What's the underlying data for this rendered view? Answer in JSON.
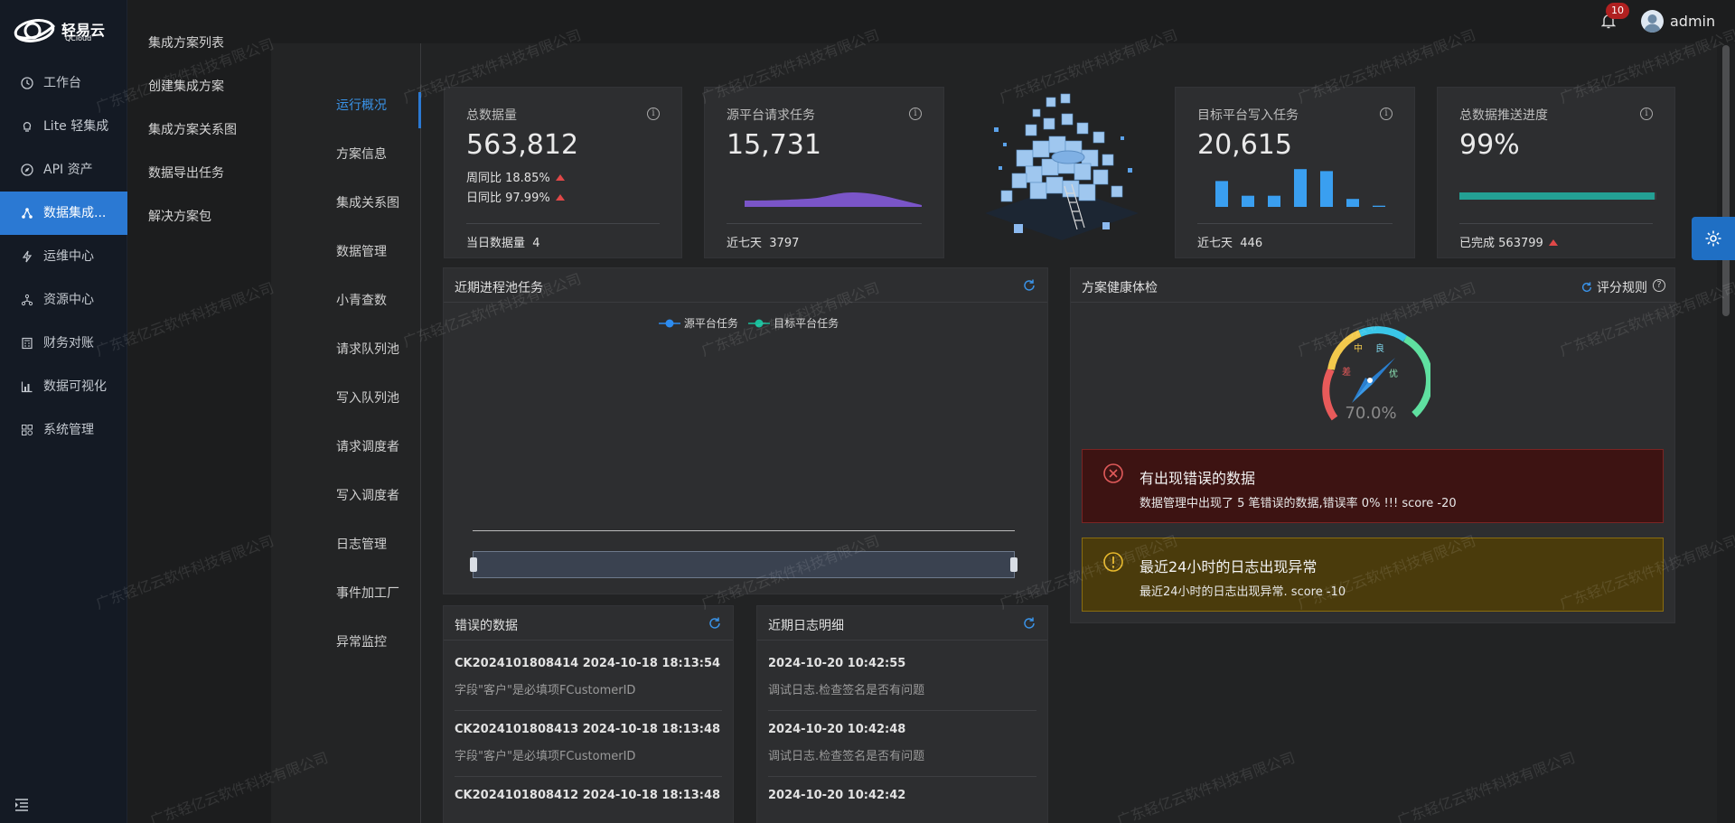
{
  "brand": {
    "name": "轻易云",
    "sub": "QCloud"
  },
  "nav": [
    {
      "label": "工作台",
      "icon": "clock-icon"
    },
    {
      "label": "Lite 轻集成",
      "icon": "lightbulb-icon"
    },
    {
      "label": "API 资产",
      "icon": "compass-icon"
    },
    {
      "label": "数据集成...",
      "icon": "share-nodes-icon",
      "active": true
    },
    {
      "label": "运维中心",
      "icon": "bolt-icon"
    },
    {
      "label": "资源中心",
      "icon": "cluster-icon"
    },
    {
      "label": "财务对账",
      "icon": "calculator-icon"
    },
    {
      "label": "数据可视化",
      "icon": "chart-icon"
    },
    {
      "label": "系统管理",
      "icon": "settings-grid-icon"
    }
  ],
  "submenu": [
    "集成方案列表",
    "创建集成方案",
    "集成方案关系图",
    "数据导出任务",
    "解决方案包"
  ],
  "topbar": {
    "notifications": "10",
    "user": "admin"
  },
  "tabs": [
    "运行概况",
    "方案信息",
    "集成关系图",
    "数据管理",
    "小青查数",
    "请求队列池",
    "写入队列池",
    "请求调度者",
    "写入调度者",
    "日志管理",
    "事件加工厂",
    "异常监控"
  ],
  "stats": {
    "total": {
      "label": "总数据量",
      "value": "563,812",
      "week": "周同比 18.85%",
      "day": "日同比 97.99%",
      "foot_label": "当日数据量",
      "foot_value": "4"
    },
    "source": {
      "label": "源平台请求任务",
      "value": "15,731",
      "foot_label": "近七天",
      "foot_value": "3797"
    },
    "target": {
      "label": "目标平台写入任务",
      "value": "20,615",
      "foot_label": "近七天",
      "foot_value": "446",
      "bars": [
        0.65,
        0.28,
        0.28,
        0.95,
        0.9,
        0.2,
        0.03
      ]
    },
    "progress": {
      "label": "总数据推送进度",
      "value": "99%",
      "foot_label": "已完成",
      "foot_value": "563799",
      "progress": 0.99
    }
  },
  "process_panel": {
    "title": "近期进程池任务",
    "legend": [
      "源平台任务",
      "目标平台任务"
    ],
    "colors": {
      "source": "#2d8cf0",
      "target": "#19be9b"
    }
  },
  "health": {
    "title": "方案健康体检",
    "rules": "评分规则",
    "gauge_labels": [
      "差",
      "中",
      "良",
      "优"
    ],
    "score": "70.0%",
    "score_value": 0.7,
    "alerts": [
      {
        "type": "error",
        "title": "有出现错误的数据",
        "desc": "数据管理中出现了 5 笔错误的数据,错误率 0% !!! score -20"
      },
      {
        "type": "warning",
        "title": "最近24小时的日志出现异常",
        "desc": "最近24小时的日志出现异常. score -10"
      }
    ]
  },
  "errors": {
    "title": "错误的数据",
    "items": [
      {
        "title": "CK2024101808414 2024-10-18 18:13:54",
        "desc": "字段\"客户\"是必填项FCustomerID"
      },
      {
        "title": "CK2024101808413 2024-10-18 18:13:48",
        "desc": "字段\"客户\"是必填项FCustomerID"
      },
      {
        "title": "CK2024101808412 2024-10-18 18:13:48",
        "desc": ""
      }
    ]
  },
  "logs": {
    "title": "近期日志明细",
    "items": [
      {
        "title": "2024-10-20 10:42:55",
        "desc": "调试日志.检查签名是否有问题"
      },
      {
        "title": "2024-10-20 10:42:48",
        "desc": "调试日志.检查签名是否有问题"
      },
      {
        "title": "2024-10-20 10:42:42",
        "desc": ""
      }
    ]
  },
  "watermark": "广东轻亿云软件科技有限公司"
}
